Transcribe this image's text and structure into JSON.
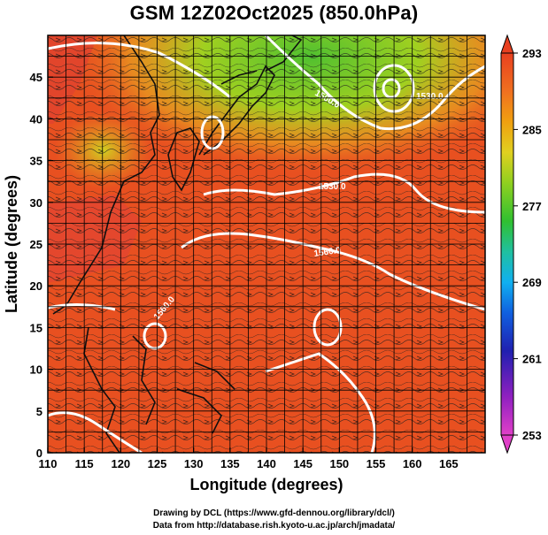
{
  "title": "GSM 12Z02Oct2025 (850.0hPa)",
  "x_axis": {
    "title": "Longitude (degrees)",
    "ticks": [
      110,
      115,
      120,
      125,
      130,
      135,
      140,
      145,
      150,
      155,
      160,
      165
    ],
    "range": [
      110,
      170
    ]
  },
  "y_axis": {
    "title": "Latitude  (degrees)",
    "ticks": [
      0,
      5,
      10,
      15,
      20,
      25,
      30,
      35,
      40,
      45
    ],
    "range": [
      0,
      50
    ]
  },
  "colorbar": {
    "ticks": [
      253,
      261,
      269,
      277,
      285,
      293
    ],
    "range": [
      253,
      293
    ],
    "colors": [
      "#e040c8",
      "#9020c0",
      "#2020b0",
      "#1060e0",
      "#10b0f0",
      "#20c0a0",
      "#30c030",
      "#90d020",
      "#e0d020",
      "#f0a010",
      "#f07020",
      "#e84020"
    ]
  },
  "contour_labels": [
    "1500.0",
    "1530.0",
    "1560.0",
    "1560.0",
    "1530.0"
  ],
  "credits": {
    "line1": "Drawing by DCL (https://www.gfd-dennou.org/library/dcl/)",
    "line2": "Data from http://database.rish.kyoto-u.ac.jp/arch/jmadata/"
  }
}
